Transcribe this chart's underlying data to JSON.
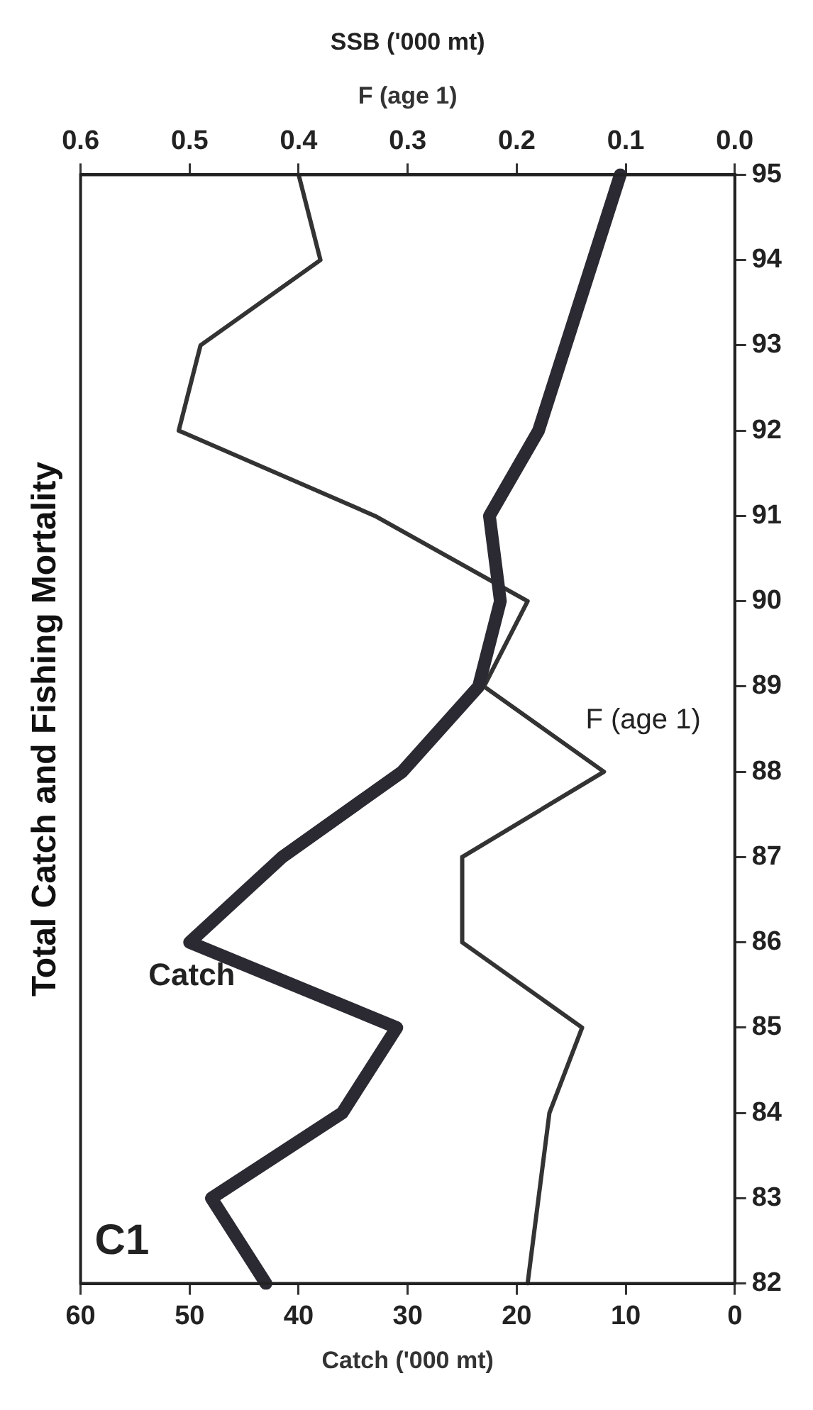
{
  "chart_data": {
    "type": "line",
    "orientation": "horizontal",
    "title": "Total Catch and Fishing Mortality",
    "xlabel": "Catch ('000 mt)",
    "x2label": "F (age 1)",
    "annotations": [
      "C1",
      "SSB ('000 mt)"
    ],
    "categories": [
      "95",
      "94",
      "93",
      "92",
      "91",
      "90",
      "89",
      "88",
      "87",
      "86",
      "85",
      "84",
      "83",
      "82"
    ],
    "series": [
      {
        "name": "Catch",
        "color": "#2b2932",
        "values": [
          10.5,
          13,
          15.5,
          18,
          22.5,
          21.5,
          23.5,
          30.5,
          41.5,
          50,
          31,
          36,
          48,
          43
        ]
      },
      {
        "name": "F (age 1)",
        "color": "#333333",
        "axis": "x2",
        "values": [
          0.4,
          0.38,
          0.49,
          0.51,
          0.33,
          0.19,
          0.23,
          0.12,
          0.25,
          0.25,
          0.14,
          0.17,
          0.18,
          0.19
        ]
      }
    ],
    "xlim": [
      60,
      0
    ],
    "xticks": [
      0,
      10,
      20,
      30,
      40,
      50,
      60
    ],
    "x2lim": [
      0.6,
      0
    ],
    "x2ticks": [
      {
        "value": 0,
        "label": "0.0"
      },
      {
        "value": 0.1,
        "label": "0.1"
      },
      {
        "value": 0.2,
        "label": "0.2"
      },
      {
        "value": 0.3,
        "label": "0.3"
      },
      {
        "value": 0.4,
        "label": "0.4"
      },
      {
        "value": 0.5,
        "label": "0.5"
      },
      {
        "value": 0.6,
        "label": "0.6"
      }
    ],
    "marker": "none",
    "legend": false,
    "grid": false
  }
}
